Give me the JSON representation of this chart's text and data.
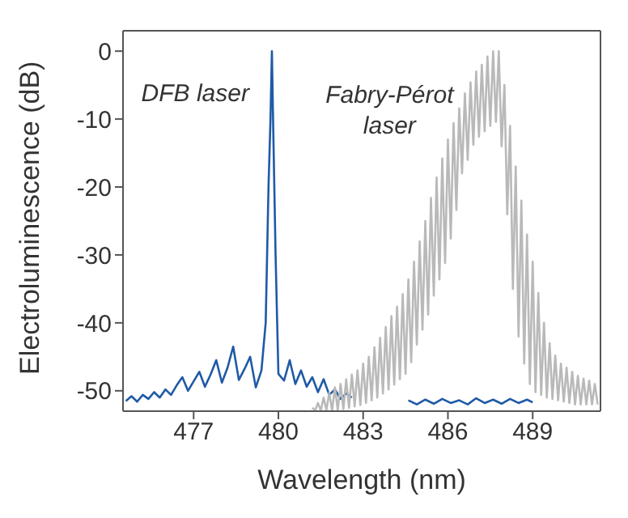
{
  "chart_data": {
    "type": "line",
    "xlabel": "Wavelength (nm)",
    "ylabel": "Electroluminescence (dB)",
    "xlim": [
      474.5,
      491.4
    ],
    "xticks": [
      477,
      480,
      483,
      486,
      489
    ],
    "ylim": [
      -53,
      3
    ],
    "yticks": [
      -50,
      -40,
      -30,
      -20,
      -10,
      0
    ],
    "grid": false,
    "legend": false,
    "marker": "none",
    "line_style": "solid",
    "series": [
      {
        "name": "DFB laser",
        "color": "#1f5aa6",
        "x": [
          474.6,
          474.8,
          475.0,
          475.2,
          475.4,
          475.6,
          475.8,
          476.0,
          476.2,
          476.4,
          476.6,
          476.8,
          477.0,
          477.2,
          477.4,
          477.6,
          477.8,
          478.0,
          478.2,
          478.4,
          478.6,
          478.8,
          479.0,
          479.2,
          479.4,
          479.55,
          479.65,
          479.72,
          479.77,
          479.82,
          479.9,
          480.0,
          480.2,
          480.4,
          480.6,
          480.8,
          481.0,
          481.2,
          481.4,
          481.6,
          481.8,
          482.0,
          482.2,
          482.4,
          482.6,
          483.0,
          484.6,
          484.9,
          485.2,
          485.5,
          485.8,
          486.1,
          486.4,
          486.7,
          487.0,
          487.3,
          487.6,
          487.9,
          488.2,
          488.5,
          488.8,
          489.0
        ],
        "values": [
          -51.5,
          -50.8,
          -51.6,
          -50.6,
          -51.2,
          -50.2,
          -51.0,
          -49.8,
          -50.6,
          -49.2,
          -48.0,
          -50.0,
          -48.6,
          -47.2,
          -49.4,
          -47.6,
          -45.5,
          -48.8,
          -46.6,
          -43.5,
          -48.4,
          -46.8,
          -45.0,
          -49.5,
          -47.0,
          -40,
          -20,
          -10,
          0,
          -12,
          -30,
          -47.5,
          -48.5,
          -45.5,
          -49.0,
          -47.0,
          -49.4,
          -48.0,
          -50.2,
          -48.3,
          -50.6,
          -49.8,
          -51.2,
          -50.4,
          -51.0,
          null,
          -51.4,
          -52.0,
          -51.3,
          -51.9,
          -51.2,
          -51.8,
          -51.4,
          -52.0,
          -51.1,
          -51.8,
          -51.3,
          -51.9,
          -51.2,
          -51.8,
          -51.3,
          -51.7
        ]
      },
      {
        "name": "Fabry-Pérot laser",
        "color": "#b9b9b9",
        "x": [
          481.2,
          481.3,
          481.4,
          481.5,
          481.6,
          481.7,
          481.8,
          481.9,
          482.0,
          482.1,
          482.2,
          482.3,
          482.4,
          482.5,
          482.6,
          482.7,
          482.8,
          482.9,
          483.0,
          483.1,
          483.2,
          483.3,
          483.4,
          483.5,
          483.6,
          483.7,
          483.8,
          483.9,
          484.0,
          484.1,
          484.2,
          484.3,
          484.4,
          484.5,
          484.6,
          484.7,
          484.8,
          484.9,
          485.0,
          485.1,
          485.2,
          485.3,
          485.4,
          485.5,
          485.6,
          485.7,
          485.8,
          485.9,
          486.0,
          486.1,
          486.2,
          486.3,
          486.4,
          486.5,
          486.6,
          486.7,
          486.8,
          486.9,
          487.0,
          487.1,
          487.2,
          487.3,
          487.4,
          487.5,
          487.6,
          487.7,
          487.8,
          487.9,
          488.0,
          488.1,
          488.2,
          488.3,
          488.4,
          488.5,
          488.6,
          488.7,
          488.8,
          488.9,
          489.0,
          489.1,
          489.2,
          489.3,
          489.4,
          489.5,
          489.6,
          489.7,
          489.8,
          489.9,
          490.0,
          490.1,
          490.2,
          490.3,
          490.4,
          490.5,
          490.6,
          490.7,
          490.8,
          490.9,
          491.0,
          491.1,
          491.2,
          491.3
        ],
        "values": [
          -52.5,
          -52.9,
          -51.8,
          -52.9,
          -51,
          -52.8,
          -50.3,
          -52.9,
          -49.5,
          -52.8,
          -49,
          -52.7,
          -48.3,
          -52.5,
          -47.6,
          -52.3,
          -47,
          -52.1,
          -46,
          -51.8,
          -45,
          -51.4,
          -43.6,
          -51,
          -42.2,
          -50.4,
          -40.6,
          -49.8,
          -39,
          -49.1,
          -37.6,
          -48.3,
          -35.8,
          -47.5,
          -33.6,
          -45.8,
          -31,
          -43.2,
          -28,
          -41,
          -25,
          -38.8,
          -21.6,
          -36,
          -18.6,
          -33.6,
          -15.8,
          -31.2,
          -13,
          -27.6,
          -10.6,
          -23.4,
          -8.4,
          -18,
          -6.2,
          -16,
          -4.6,
          -13.8,
          -3,
          -12.6,
          -2,
          -11.8,
          -0.8,
          -11,
          0,
          -10.4,
          0,
          -14,
          -5,
          -24,
          -11,
          -35,
          -17,
          -42,
          -22,
          -46,
          -27,
          -49,
          -31,
          -50.2,
          -35.6,
          -50.6,
          -40,
          -51,
          -43,
          -51.2,
          -44.8,
          -51.4,
          -46,
          -51.6,
          -46.6,
          -51.8,
          -47.2,
          -52,
          -47.8,
          -52,
          -48.2,
          -52,
          -48.5,
          -52,
          -49,
          -52
        ]
      }
    ]
  }
}
